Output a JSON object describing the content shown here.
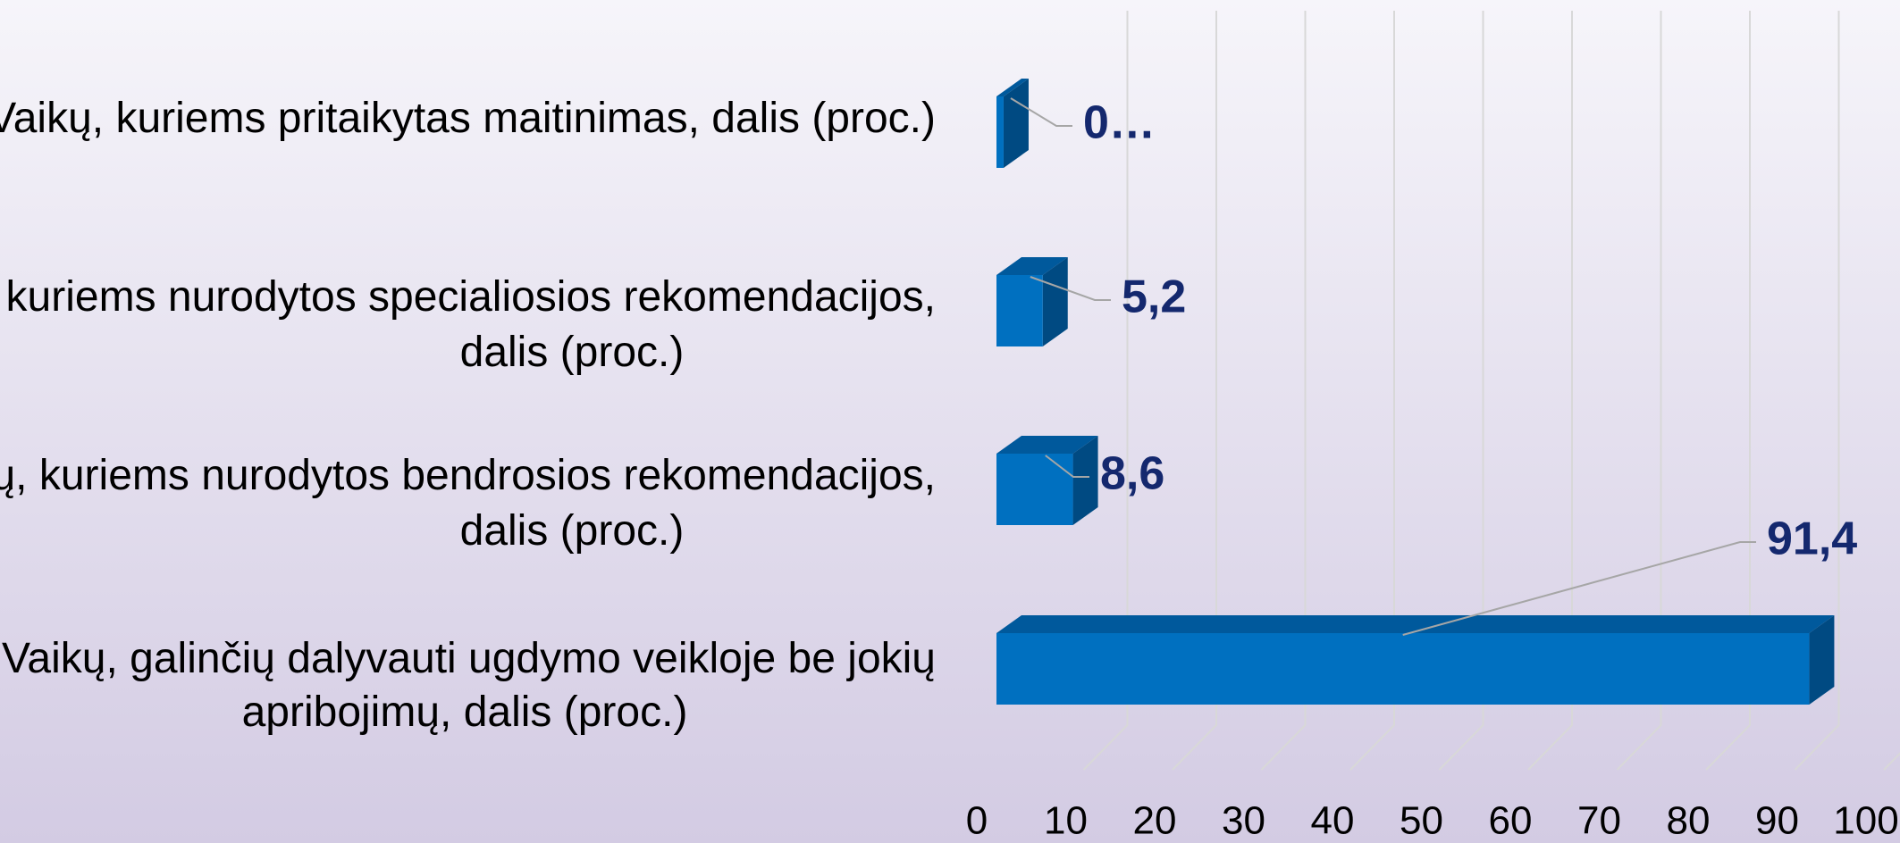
{
  "chart_data": {
    "type": "bar3d-horizontal",
    "categories": [
      "Vaikų, kuriems pritaikytas maitinimas, dalis (proc.)",
      "Vaikų, kuriems nurodytos specialiosios rekomendacijos, dalis (proc.)",
      "Vaikų, kuriems nurodytos bendrosios rekomendacijos, dalis (proc.)",
      "Vaikų, galinčių dalyvauti ugdymo veikloje be jokių apribojimų, dalis (proc.)"
    ],
    "values": [
      0.8,
      5.2,
      8.6,
      91.4
    ],
    "value_labels": [
      "0…",
      "5,2",
      "8,6",
      "91,4"
    ],
    "color": "#0070c0",
    "xlim": [
      0,
      100
    ],
    "xticks": [
      0,
      10,
      20,
      30,
      40,
      50,
      60,
      70,
      80,
      90,
      100
    ],
    "grid": true
  }
}
